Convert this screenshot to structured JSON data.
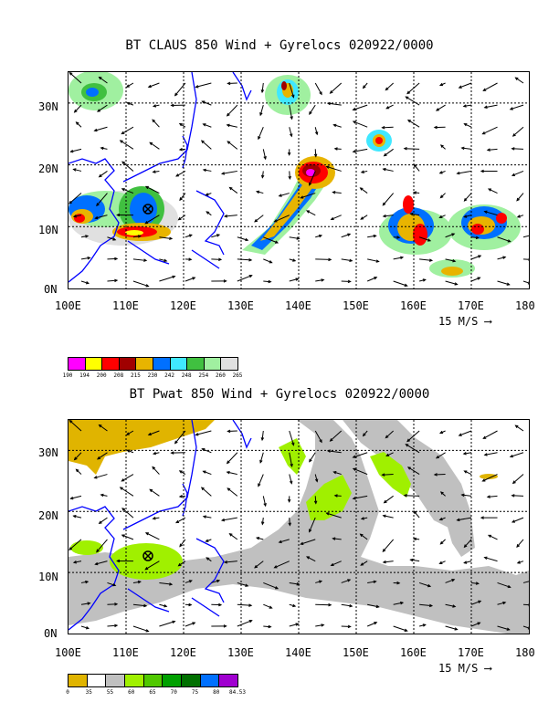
{
  "panel1": {
    "title": "BT CLAUS 850 Wind + Gyrelocs 020922/0000",
    "y_labels": [
      "30N",
      "20N",
      "10N",
      "0N"
    ],
    "x_labels": [
      "100E",
      "110E",
      "120E",
      "130E",
      "140E",
      "150E",
      "160E",
      "170E",
      "180"
    ],
    "vector_ref": "15 M/S",
    "colorbar": {
      "colors": [
        "#ff00ff",
        "#ffff00",
        "#ff0000",
        "#a00000",
        "#e8b400",
        "#0070ff",
        "#40e8ff",
        "#40c040",
        "#a0f0a0",
        "#e0e0e0"
      ],
      "ticks": [
        "190",
        "194",
        "200",
        "208",
        "215",
        "230",
        "242",
        "248",
        "254",
        "260",
        "265"
      ]
    },
    "storm_marker": "cyclone-position-icon"
  },
  "panel2": {
    "title": "BT Pwat 850 Wind + Gyrelocs 020922/0000",
    "y_labels": [
      "30N",
      "20N",
      "10N",
      "0N"
    ],
    "x_labels": [
      "100E",
      "110E",
      "120E",
      "130E",
      "140E",
      "150E",
      "160E",
      "170E",
      "180"
    ],
    "vector_ref": "15 M/S",
    "colorbar": {
      "colors": [
        "#e0b400",
        "#ffffff",
        "#c0c0c0",
        "#a0f000",
        "#50c800",
        "#00a000",
        "#007000",
        "#0070ff",
        "#a000d0"
      ],
      "ticks": [
        "0",
        "35",
        "55",
        "60",
        "65",
        "70",
        "75",
        "80",
        "84.53"
      ]
    },
    "storm_marker": "cyclone-position-icon"
  }
}
